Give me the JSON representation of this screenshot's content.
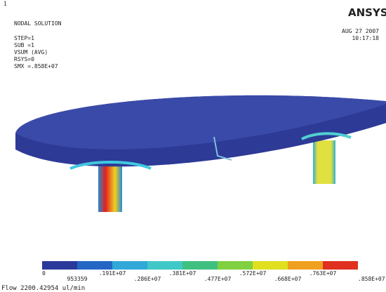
{
  "header": {
    "title": "NODAL SOLUTION",
    "lines": [
      "STEP=1",
      "SUB =1",
      "VSUM     (AVG)",
      "RSYS=0",
      "SMX =.858E+07"
    ],
    "date": "AUG 27 2007",
    "time": "10:17:18",
    "logo": "ANSYS"
  },
  "legend": {
    "upper_labels": [
      "0",
      ".191E+07",
      ".381E+07",
      ".572E+07",
      ".763E+07"
    ],
    "lower_labels": [
      "953359",
      ".286E+07",
      ".477E+07",
      ".668E+07",
      ".858E+07"
    ]
  },
  "caption": "Flow 2200.42954 ul/min"
}
